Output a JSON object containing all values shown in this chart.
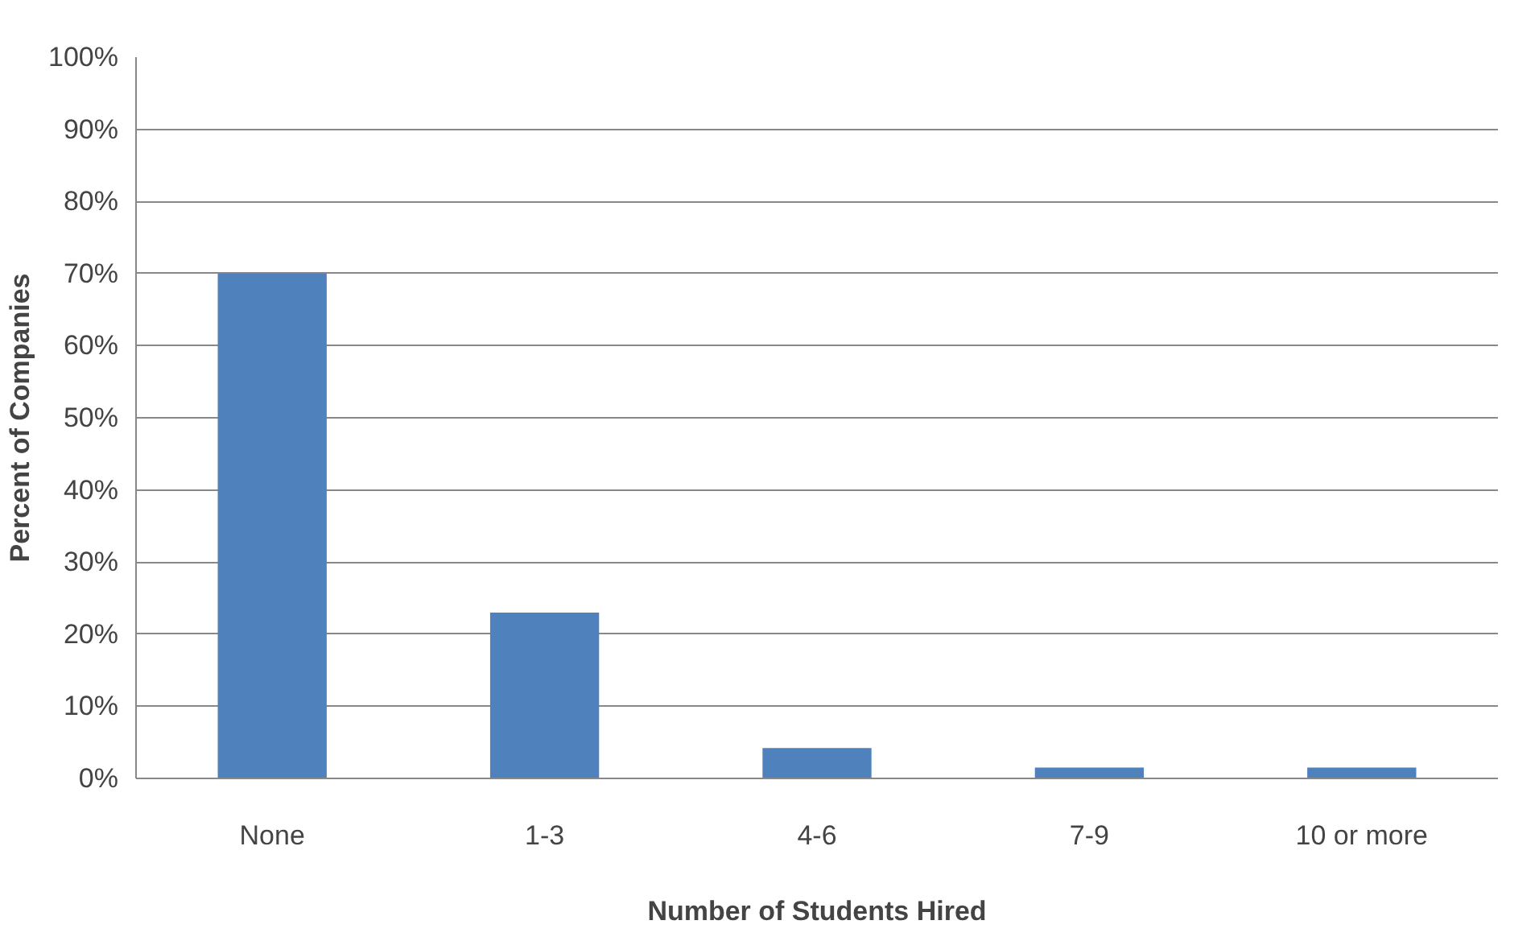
{
  "chart_data": {
    "type": "bar",
    "xlabel": "Number of Students Hired",
    "ylabel": "Percent of Companies",
    "categories": [
      "None",
      "1-3",
      "4-6",
      "7-9",
      "10 or more"
    ],
    "values": [
      70,
      23,
      4.2,
      1.5,
      1.5
    ],
    "color": "#4f81bd",
    "ylim": [
      0,
      100
    ],
    "yticks": [
      {
        "value": 0,
        "label": "0%"
      },
      {
        "value": 10,
        "label": "10%"
      },
      {
        "value": 20,
        "label": "20%"
      },
      {
        "value": 30,
        "label": "30%"
      },
      {
        "value": 40,
        "label": "40%"
      },
      {
        "value": 50,
        "label": "50%"
      },
      {
        "value": 60,
        "label": "60%"
      },
      {
        "value": 70,
        "label": "70%"
      },
      {
        "value": 80,
        "label": "80%"
      },
      {
        "value": 90,
        "label": "90%"
      },
      {
        "value": 100,
        "label": "100%"
      }
    ],
    "grid": "y"
  }
}
